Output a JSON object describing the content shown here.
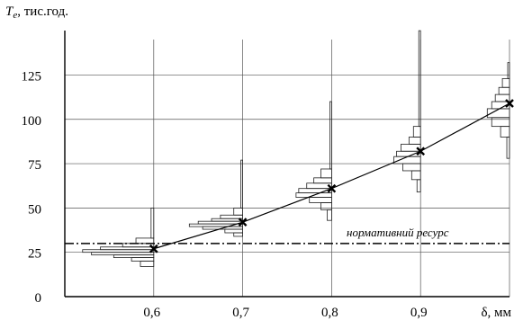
{
  "chart_data": {
    "type": "line",
    "ylabel": {
      "symbol": "T",
      "subscript": "e",
      "unit": ", тис.год."
    },
    "xlabel": "δ, мм",
    "x_ticks": [
      "0,6",
      "0,7",
      "0,8",
      "0,9"
    ],
    "y_ticks": [
      "0",
      "25",
      "50",
      "75",
      "100",
      "125"
    ],
    "xlim": [
      0.5,
      1.0
    ],
    "ylim": [
      0,
      145
    ],
    "grid": true,
    "series": [
      {
        "x": [
          0.6,
          0.7,
          0.8,
          0.9,
          1.0
        ],
        "y": [
          27,
          42,
          61,
          82,
          109
        ]
      }
    ],
    "reference_line": {
      "label": "нормативний ресурс",
      "y": 30
    },
    "histograms": [
      {
        "x": 0.6,
        "bins": [
          {
            "y0": 17,
            "y1": 20,
            "w": 0.015
          },
          {
            "y0": 20,
            "y1": 22,
            "w": 0.025
          },
          {
            "y0": 22,
            "y1": 23.5,
            "w": 0.045
          },
          {
            "y0": 23.5,
            "y1": 25,
            "w": 0.07
          },
          {
            "y0": 25,
            "y1": 26.5,
            "w": 0.08
          },
          {
            "y0": 26.5,
            "y1": 28,
            "w": 0.06
          },
          {
            "y0": 28,
            "y1": 30,
            "w": 0.035
          },
          {
            "y0": 30,
            "y1": 33,
            "w": 0.02
          },
          {
            "y0": 33,
            "y1": 50,
            "w": 0.003
          }
        ]
      },
      {
        "x": 0.7,
        "bins": [
          {
            "y0": 34,
            "y1": 36,
            "w": 0.01
          },
          {
            "y0": 36,
            "y1": 38,
            "w": 0.02
          },
          {
            "y0": 38,
            "y1": 39.5,
            "w": 0.045
          },
          {
            "y0": 39.5,
            "y1": 41,
            "w": 0.06
          },
          {
            "y0": 41,
            "y1": 42.5,
            "w": 0.05
          },
          {
            "y0": 42.5,
            "y1": 44,
            "w": 0.035
          },
          {
            "y0": 44,
            "y1": 46,
            "w": 0.025
          },
          {
            "y0": 46,
            "y1": 50,
            "w": 0.01
          },
          {
            "y0": 50,
            "y1": 77,
            "w": 0.002
          }
        ]
      },
      {
        "x": 0.8,
        "bins": [
          {
            "y0": 43,
            "y1": 49,
            "w": 0.005
          },
          {
            "y0": 49,
            "y1": 53,
            "w": 0.012
          },
          {
            "y0": 53,
            "y1": 56,
            "w": 0.025
          },
          {
            "y0": 56,
            "y1": 58.5,
            "w": 0.04
          },
          {
            "y0": 58.5,
            "y1": 61,
            "w": 0.037
          },
          {
            "y0": 61,
            "y1": 64,
            "w": 0.028
          },
          {
            "y0": 64,
            "y1": 67,
            "w": 0.02
          },
          {
            "y0": 67,
            "y1": 72,
            "w": 0.012
          },
          {
            "y0": 72,
            "y1": 110,
            "w": 0.002
          }
        ]
      },
      {
        "x": 0.9,
        "bins": [
          {
            "y0": 59,
            "y1": 66,
            "w": 0.004
          },
          {
            "y0": 66,
            "y1": 71,
            "w": 0.01
          },
          {
            "y0": 71,
            "y1": 75,
            "w": 0.02
          },
          {
            "y0": 75,
            "y1": 79,
            "w": 0.03
          },
          {
            "y0": 79,
            "y1": 82,
            "w": 0.027
          },
          {
            "y0": 82,
            "y1": 86,
            "w": 0.022
          },
          {
            "y0": 86,
            "y1": 90,
            "w": 0.013
          },
          {
            "y0": 90,
            "y1": 96,
            "w": 0.008
          },
          {
            "y0": 96,
            "y1": 150,
            "w": 0.002
          }
        ]
      },
      {
        "x": 1.0,
        "bins": [
          {
            "y0": 78,
            "y1": 90,
            "w": 0.003
          },
          {
            "y0": 90,
            "y1": 96,
            "w": 0.01
          },
          {
            "y0": 96,
            "y1": 101,
            "w": 0.02
          },
          {
            "y0": 101,
            "y1": 106,
            "w": 0.025
          },
          {
            "y0": 106,
            "y1": 110,
            "w": 0.02
          },
          {
            "y0": 110,
            "y1": 114,
            "w": 0.016
          },
          {
            "y0": 114,
            "y1": 118,
            "w": 0.012
          },
          {
            "y0": 118,
            "y1": 123,
            "w": 0.008
          },
          {
            "y0": 123,
            "y1": 132,
            "w": 0.002
          }
        ]
      }
    ]
  }
}
